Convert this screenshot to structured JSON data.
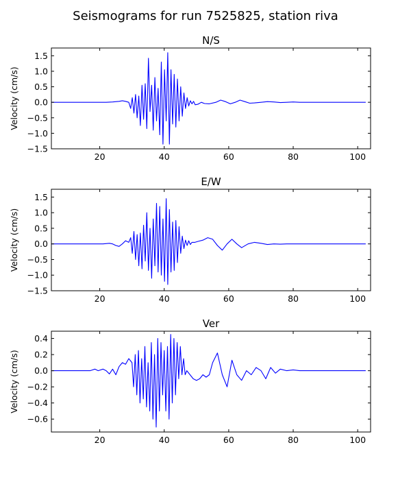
{
  "figure": {
    "suptitle": "Seismograms for run 7525825, station riva"
  },
  "colors": {
    "trace": "#0000ff",
    "axes": "#000000",
    "background": "#ffffff"
  },
  "chart_data": [
    {
      "type": "line",
      "title": "N/S",
      "xlabel": "",
      "ylabel": "Velocity (cm/s)",
      "xlim": [
        5,
        104
      ],
      "ylim": [
        -1.5,
        1.75
      ],
      "xticks": [
        20,
        40,
        60,
        80,
        100
      ],
      "xtick_labels": [
        "20",
        "40",
        "60",
        "80",
        "100"
      ],
      "yticks": [
        -1.5,
        -1.0,
        -0.5,
        0.0,
        0.5,
        1.0,
        1.5
      ],
      "ytick_labels": [
        "−1.5",
        "−1.0",
        "−0.5",
        "0.0",
        "0.5",
        "1.0",
        "1.5"
      ],
      "grid": false,
      "series": [
        {
          "color": "#0000ff",
          "x": [
            5,
            18,
            22,
            24,
            26,
            27,
            28,
            29,
            29.6,
            30.1,
            30.6,
            31.1,
            31.6,
            32.1,
            32.6,
            33.1,
            33.6,
            34.1,
            34.6,
            35.1,
            35.6,
            36.1,
            36.6,
            37.1,
            37.6,
            38.1,
            38.6,
            39.1,
            39.6,
            40.1,
            40.6,
            41.1,
            41.6,
            42.1,
            42.6,
            43.1,
            43.6,
            44.1,
            44.6,
            45.1,
            45.6,
            46.1,
            46.6,
            47.1,
            47.6,
            48.1,
            48.6,
            49.1,
            49.6,
            50.5,
            51.5,
            52.5,
            54,
            56,
            57.5,
            59,
            60.5,
            62,
            63.5,
            65,
            66.5,
            68,
            70,
            72,
            74,
            76,
            78,
            80,
            82,
            84,
            90,
            102.5
          ],
          "y": [
            0,
            0,
            0,
            0.01,
            0.03,
            0.05,
            0.03,
            0,
            -0.2,
            0.15,
            -0.35,
            0.25,
            -0.5,
            0.2,
            -0.75,
            0.55,
            -0.55,
            0.6,
            -0.85,
            1.42,
            -0.3,
            0.55,
            -0.9,
            0.8,
            -0.6,
            0.45,
            -1.05,
            1.3,
            -1.35,
            1.05,
            -0.6,
            1.6,
            -1.35,
            1.05,
            -0.7,
            0.9,
            -0.8,
            0.75,
            -0.6,
            0.5,
            -0.45,
            0.3,
            -0.2,
            0.15,
            -0.12,
            0.05,
            -0.05,
            0.03,
            -0.08,
            -0.06,
            0,
            -0.04,
            -0.05,
            0,
            0.07,
            0.02,
            -0.05,
            0,
            0.07,
            0.02,
            -0.03,
            -0.02,
            0,
            0.02,
            0.01,
            -0.01,
            0,
            0.01,
            0,
            0,
            0,
            0
          ]
        }
      ]
    },
    {
      "type": "line",
      "title": "E/W",
      "xlabel": "",
      "ylabel": "Velocity (cm/s)",
      "xlim": [
        5,
        104
      ],
      "ylim": [
        -1.5,
        1.75
      ],
      "xticks": [
        20,
        40,
        60,
        80,
        100
      ],
      "xtick_labels": [
        "20",
        "40",
        "60",
        "80",
        "100"
      ],
      "yticks": [
        -1.5,
        -1.0,
        -0.5,
        0.0,
        0.5,
        1.0,
        1.5
      ],
      "ytick_labels": [
        "−1.5",
        "−1.0",
        "−0.5",
        "0.0",
        "0.5",
        "1.0",
        "1.5"
      ],
      "grid": false,
      "series": [
        {
          "color": "#0000ff",
          "x": [
            5,
            18,
            21,
            23,
            24,
            25,
            26,
            27,
            28,
            29,
            29.6,
            30.1,
            30.6,
            31.1,
            31.6,
            32.1,
            32.6,
            33.1,
            33.6,
            34.1,
            34.6,
            35.1,
            35.6,
            36.1,
            36.6,
            37.1,
            37.6,
            38.1,
            38.6,
            39.1,
            39.6,
            40.1,
            40.6,
            41.1,
            41.6,
            42.1,
            42.6,
            43.1,
            43.6,
            44.1,
            44.6,
            45.1,
            45.6,
            46.1,
            46.6,
            47.1,
            47.6,
            48.1,
            48.6,
            49.5,
            50.5,
            52,
            53.5,
            55,
            56.5,
            58,
            59.5,
            61,
            62.5,
            64,
            66,
            68,
            70,
            72,
            74,
            76,
            78,
            80,
            90,
            102.5
          ],
          "y": [
            0,
            0,
            0,
            0.02,
            0,
            -0.05,
            -0.08,
            0,
            0.1,
            0.05,
            0.2,
            -0.3,
            0.4,
            -0.5,
            0.3,
            -0.7,
            0.35,
            -0.8,
            0.6,
            -0.55,
            1.0,
            -0.85,
            0.5,
            -1.1,
            0.8,
            -0.7,
            1.3,
            -0.9,
            1.2,
            -1.0,
            0.8,
            -1.2,
            1.45,
            -1.3,
            1.1,
            -0.9,
            0.7,
            -0.85,
            0.75,
            -0.6,
            0.55,
            -0.3,
            0.25,
            -0.15,
            0.12,
            -0.05,
            0.1,
            -0.02,
            0.05,
            0.05,
            0.08,
            0.12,
            0.2,
            0.15,
            -0.05,
            -0.2,
            0,
            0.15,
            0,
            -0.12,
            0,
            0.05,
            0.02,
            -0.02,
            0,
            -0.01,
            0,
            0,
            0,
            0
          ]
        }
      ]
    },
    {
      "type": "line",
      "title": "Ver",
      "xlabel": "",
      "ylabel": "Velocity (cm/s)",
      "xlim": [
        5,
        104
      ],
      "ylim": [
        -0.76,
        0.49
      ],
      "xticks": [
        20,
        40,
        60,
        80,
        100
      ],
      "xtick_labels": [
        "20",
        "40",
        "60",
        "80",
        "100"
      ],
      "yticks": [
        -0.6,
        -0.4,
        -0.2,
        0.0,
        0.2,
        0.4
      ],
      "ytick_labels": [
        "−0.6",
        "−0.4",
        "−0.2",
        "0.0",
        "0.2",
        "0.4"
      ],
      "grid": false,
      "series": [
        {
          "color": "#0000ff",
          "x": [
            5,
            17,
            18.5,
            19.5,
            21,
            22,
            23,
            24,
            25,
            26,
            27,
            28,
            29,
            30,
            30.5,
            31,
            31.5,
            32,
            32.5,
            33,
            33.5,
            34,
            34.5,
            35,
            35.5,
            36,
            36.5,
            37,
            37.5,
            38,
            38.5,
            39,
            39.5,
            40,
            40.5,
            41,
            41.5,
            42,
            42.5,
            43,
            43.5,
            44,
            44.5,
            45,
            45.5,
            46,
            46.5,
            47,
            48,
            49,
            50,
            51,
            52,
            53,
            54,
            55,
            56.5,
            58,
            59.5,
            61,
            62.5,
            64,
            65.5,
            67,
            68.5,
            70,
            71.5,
            73,
            74.5,
            76,
            78,
            80,
            82,
            84,
            90,
            102.5
          ],
          "y": [
            0,
            0,
            0.02,
            0,
            0.02,
            0,
            -0.04,
            0.02,
            -0.05,
            0.05,
            0.1,
            0.08,
            0.15,
            0.1,
            -0.2,
            0.2,
            -0.3,
            0.25,
            -0.4,
            0.15,
            -0.35,
            0.3,
            -0.45,
            0.1,
            -0.5,
            0.35,
            -0.6,
            0.2,
            -0.7,
            0.4,
            -0.5,
            0.35,
            -0.3,
            0.25,
            -0.5,
            0.3,
            -0.6,
            0.45,
            -0.4,
            0.4,
            -0.3,
            0.35,
            -0.1,
            0.3,
            -0.05,
            0.15,
            -0.05,
            0,
            -0.05,
            -0.1,
            -0.12,
            -0.1,
            -0.05,
            -0.08,
            -0.05,
            0.1,
            0.22,
            -0.05,
            -0.2,
            0.13,
            -0.05,
            -0.12,
            0,
            -0.05,
            0.04,
            0,
            -0.1,
            0.04,
            -0.03,
            0.02,
            0,
            0.01,
            0,
            0,
            0,
            0
          ]
        }
      ]
    }
  ]
}
